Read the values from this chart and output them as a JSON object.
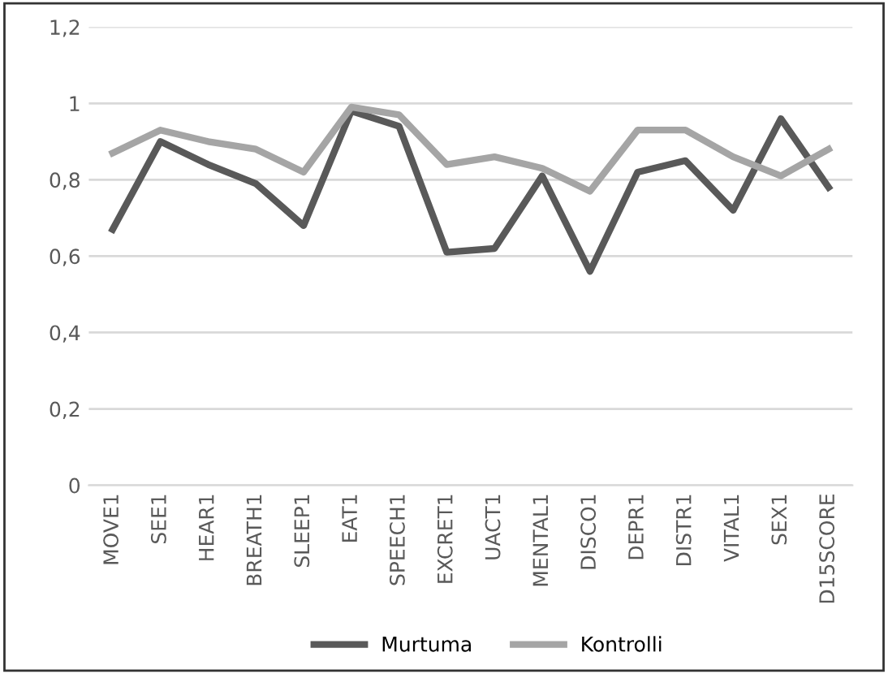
{
  "chart_data": {
    "type": "line",
    "categories": [
      "MOVE1",
      "SEE1",
      "HEAR1",
      "BREATH1",
      "SLEEP1",
      "EAT1",
      "SPEECH1",
      "EXCRET1",
      "UACT1",
      "MENTAL1",
      "DISCO1",
      "DEPR1",
      "DISTR1",
      "VITAL1",
      "SEX1",
      "D15SCORE"
    ],
    "series": [
      {
        "name": "Murtuma",
        "color": "#595959",
        "values": [
          0.67,
          0.9,
          0.84,
          0.79,
          0.68,
          0.98,
          0.94,
          0.61,
          0.62,
          0.81,
          0.56,
          0.82,
          0.85,
          0.72,
          0.96,
          0.78
        ]
      },
      {
        "name": "Kontrolli",
        "color": "#a5a5a5",
        "values": [
          0.87,
          0.93,
          0.9,
          0.88,
          0.82,
          0.99,
          0.97,
          0.84,
          0.86,
          0.83,
          0.77,
          0.93,
          0.93,
          0.86,
          0.81,
          0.88
        ]
      }
    ],
    "ylim": [
      0,
      1.2
    ],
    "yticks": [
      {
        "value": 0,
        "label": "0"
      },
      {
        "value": 0.2,
        "label": "0,2"
      },
      {
        "value": 0.4,
        "label": "0,4"
      },
      {
        "value": 0.6,
        "label": "0,6"
      },
      {
        "value": 0.8,
        "label": "0,8"
      },
      {
        "value": 1,
        "label": "1"
      },
      {
        "value": 1.2,
        "label": "1,2"
      }
    ],
    "grid": "y",
    "legend": "bottom",
    "marker": "none",
    "line_style": "solid"
  }
}
